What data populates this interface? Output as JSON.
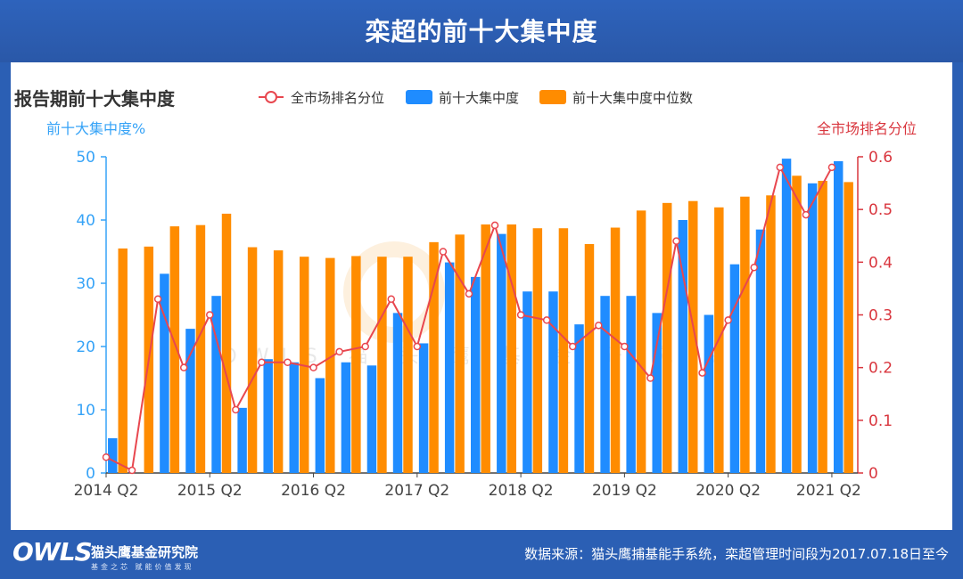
{
  "banner": {
    "title": "栾超的前十大集中度"
  },
  "footer": {
    "logo_mark": "OWLS",
    "logo_name": "猫头鹰基金研究院",
    "logo_slogan": "基金之芯 赋能价值发现",
    "source": "数据来源：猫头鹰捕基能手系统，栾超管理时间段为2017.07.18日至今"
  },
  "colors": {
    "blue": "#1f8cff",
    "orange": "#ff8c00",
    "line": "#e8474f",
    "left_axis": "#36a3f7",
    "right_axis": "#d9363e"
  },
  "chart_data": {
    "type": "bar",
    "title": "报告期前十大集中度",
    "ylabel_left": "前十大集中度%",
    "ylabel_right": "全市场排名分位",
    "ylim_left": [
      0,
      50
    ],
    "yticks_left": [
      0,
      10,
      20,
      30,
      40,
      50
    ],
    "ylim_right": [
      0,
      0.6
    ],
    "yticks_right": [
      "0",
      "0.1",
      "0.2",
      "0.3",
      "0.4",
      "0.5",
      "0.6"
    ],
    "xtick_labels": [
      "2014 Q2",
      "2015 Q2",
      "2016 Q2",
      "2017 Q2",
      "2018 Q2",
      "2019 Q2",
      "2020 Q2",
      "2021 Q2"
    ],
    "categories": [
      "2014Q2",
      "2014Q3",
      "2014Q4",
      "2015Q1",
      "2015Q2",
      "2015Q3",
      "2015Q4",
      "2016Q1",
      "2016Q2",
      "2016Q3",
      "2016Q4",
      "2017Q1",
      "2017Q2",
      "2017Q3",
      "2017Q4",
      "2018Q1",
      "2018Q2",
      "2018Q3",
      "2018Q4",
      "2019Q1",
      "2019Q2",
      "2019Q3",
      "2019Q4",
      "2020Q1",
      "2020Q2",
      "2020Q3",
      "2020Q4",
      "2021Q1",
      "2021Q2"
    ],
    "series": [
      {
        "name": "前十大集中度",
        "type": "bar",
        "axis": "left",
        "values": [
          5.5,
          0,
          31.5,
          22.8,
          28,
          10.3,
          18,
          17.5,
          15,
          17.5,
          17,
          25.3,
          20.5,
          33.3,
          31,
          37.8,
          28.7,
          28.7,
          23.5,
          28,
          28,
          25.3,
          40,
          25,
          33,
          38.5,
          49.7,
          45.8,
          49.3
        ]
      },
      {
        "name": "前十大集中度中位数",
        "type": "bar",
        "axis": "left",
        "values": [
          35.5,
          35.8,
          39,
          39.2,
          41,
          35.7,
          35.2,
          34.2,
          34,
          34.3,
          34.2,
          34.2,
          36.5,
          37.7,
          39.3,
          39.3,
          38.7,
          38.7,
          36.2,
          38.8,
          41.5,
          42.7,
          43,
          42,
          43.7,
          43.9,
          47,
          46.2,
          46
        ]
      },
      {
        "name": "全市场排名分位",
        "type": "line",
        "axis": "right",
        "values": [
          0.03,
          0.005,
          0.33,
          0.2,
          0.3,
          0.12,
          0.21,
          0.21,
          0.2,
          0.23,
          0.24,
          0.33,
          0.24,
          0.42,
          0.34,
          0.47,
          0.3,
          0.29,
          0.24,
          0.28,
          0.24,
          0.18,
          0.44,
          0.19,
          0.29,
          0.39,
          0.58,
          0.49,
          0.58
        ]
      }
    ],
    "legend": [
      "全市场排名分位",
      "前十大集中度",
      "前十大集中度中位数"
    ],
    "legend_position": "top",
    "watermark": "OWLS 猫 头 鹰 基 金 研 究 院"
  }
}
